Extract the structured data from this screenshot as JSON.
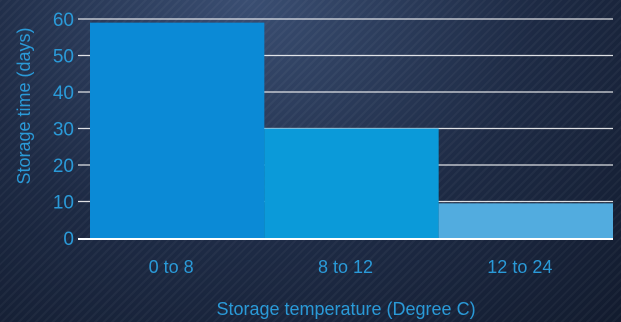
{
  "chart_data": {
    "type": "bar",
    "categories": [
      "0 to 8",
      "8 to 12",
      "12 to 24"
    ],
    "values": [
      59,
      30,
      9.5
    ],
    "title": "",
    "xlabel": "Storage temperature (Degree C)",
    "ylabel": "Storage time (days)",
    "ylim": [
      0,
      60
    ],
    "yticks": [
      "0",
      "10",
      "20",
      "30",
      "40",
      "50",
      "60"
    ],
    "grid": true,
    "bar_colors": [
      "#0b8ad6",
      "#0b9ad9",
      "#52acdf"
    ],
    "text_color": "#2a9ad8",
    "grid_color": "#ffffff"
  }
}
